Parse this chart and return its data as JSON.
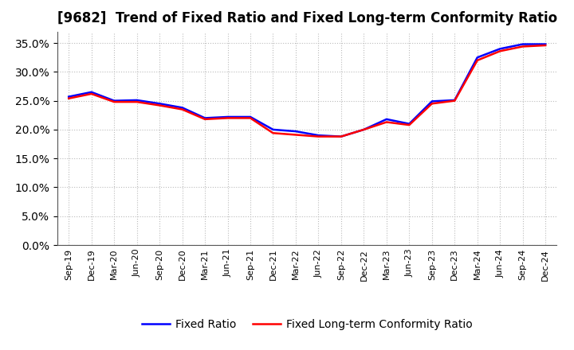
{
  "title": "[9682]  Trend of Fixed Ratio and Fixed Long-term Conformity Ratio",
  "x_labels": [
    "Sep-19",
    "Dec-19",
    "Mar-20",
    "Jun-20",
    "Sep-20",
    "Dec-20",
    "Mar-21",
    "Jun-21",
    "Sep-21",
    "Dec-21",
    "Mar-22",
    "Jun-22",
    "Sep-22",
    "Dec-22",
    "Mar-23",
    "Jun-23",
    "Sep-23",
    "Dec-23",
    "Mar-24",
    "Jun-24",
    "Sep-24",
    "Dec-24"
  ],
  "fixed_ratio": [
    0.257,
    0.265,
    0.25,
    0.251,
    0.245,
    0.238,
    0.22,
    0.222,
    0.222,
    0.2,
    0.197,
    0.19,
    0.188,
    0.2,
    0.218,
    0.21,
    0.249,
    0.251,
    0.325,
    0.34,
    0.348,
    0.348
  ],
  "fixed_lt_ratio": [
    0.254,
    0.262,
    0.248,
    0.248,
    0.242,
    0.235,
    0.218,
    0.22,
    0.22,
    0.194,
    0.191,
    0.188,
    0.188,
    0.2,
    0.213,
    0.208,
    0.245,
    0.25,
    0.32,
    0.336,
    0.344,
    0.346
  ],
  "fixed_ratio_color": "#0000ff",
  "fixed_lt_ratio_color": "#ff0000",
  "line_width": 1.8,
  "ylim": [
    0.0,
    0.37
  ],
  "yticks": [
    0.0,
    0.05,
    0.1,
    0.15,
    0.2,
    0.25,
    0.3,
    0.35
  ],
  "background_color": "#ffffff",
  "plot_bg_color": "#ffffff",
  "grid_color": "#bbbbbb",
  "title_fontsize": 12,
  "legend_fontsize": 10,
  "tick_fontsize": 10,
  "xtick_fontsize": 8
}
